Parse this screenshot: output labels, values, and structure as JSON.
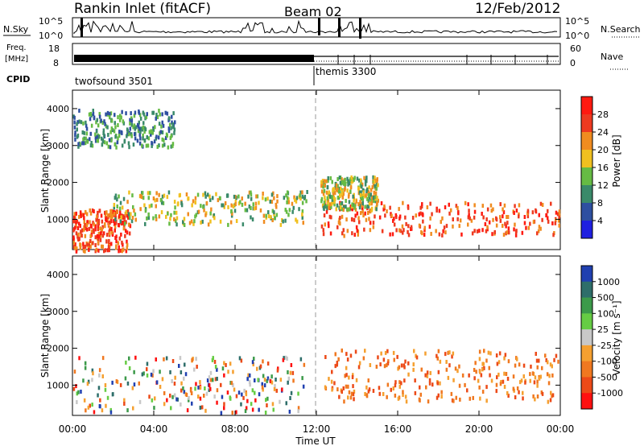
{
  "header": {
    "station": "Rankin Inlet (fitACF)",
    "beam": "Beam 02",
    "date": "12/Feb/2012"
  },
  "top_panels": {
    "nsky_label": "N.Sky",
    "nsky_ticks": [
      "10^5",
      "10^0"
    ],
    "nsearch_label": "N.Search",
    "nsearch_ticks": [
      "10^5",
      "10^0"
    ],
    "freq_label": "Freq.",
    "freq_unit": "[MHz]",
    "freq_ticks": [
      "18",
      "8"
    ],
    "nave_label": "Nave",
    "nave_ticks": [
      "60",
      "0"
    ],
    "cpid_label": "CPID",
    "cpid_segments": [
      {
        "label": "twofsound 3501",
        "start_hour": 0,
        "end_hour": 12
      },
      {
        "label": "themis 3300",
        "start_hour": 12,
        "end_hour": 24
      }
    ]
  },
  "chart_data": [
    {
      "type": "heatmap",
      "ylabel": "Slant Range [km]",
      "yticks": [
        1000,
        2000,
        3000,
        4000
      ],
      "ylim": [
        180,
        4500
      ],
      "xlim": [
        0,
        24
      ],
      "colorbar": {
        "label": "Power [dB]",
        "ticks": [
          "4",
          "8",
          "12",
          "16",
          "20",
          "24",
          "28"
        ],
        "colors": [
          "#1f1fe0",
          "#2e4fa0",
          "#3a8a6a",
          "#66bb44",
          "#f0c020",
          "#f08c20",
          "#ee3a20",
          "#ff1a10"
        ]
      },
      "scatter_regions": [
        {
          "start_hour": 0.0,
          "end_hour": 2.8,
          "range_km": [
            180,
            1300
          ],
          "level": "strong"
        },
        {
          "start_hour": 2.0,
          "end_hour": 11.5,
          "range_km": [
            900,
            1800
          ],
          "level": "medium"
        },
        {
          "start_hour": 12.2,
          "end_hour": 24.0,
          "range_km": [
            600,
            1500
          ],
          "level": "strong"
        },
        {
          "start_hour": 12.2,
          "end_hour": 15.0,
          "range_km": [
            1300,
            2200
          ],
          "level": "medium"
        },
        {
          "start_hour": 0.0,
          "end_hour": 5.0,
          "range_km": [
            3000,
            4000
          ],
          "level": "weak"
        }
      ]
    },
    {
      "type": "heatmap",
      "ylabel": "Slant Range [km]",
      "xlabel": "Time UT",
      "xticks": [
        "00:00",
        "04:00",
        "08:00",
        "12:00",
        "16:00",
        "20:00",
        "00:00"
      ],
      "yticks": [
        1000,
        2000,
        3000,
        4000
      ],
      "ylim": [
        180,
        4500
      ],
      "xlim": [
        0,
        24
      ],
      "colorbar": {
        "label": "Velocity [m s⁻¹]",
        "ticks": [
          "1000",
          "500",
          "100",
          "25",
          "-25",
          "-100",
          "-500",
          "-1000"
        ],
        "colors": [
          "#2040b0",
          "#2e6e6a",
          "#3c9a4a",
          "#66cc44",
          "#c8c8c8",
          "#f5a030",
          "#f07820",
          "#ec4a18",
          "#ff1010"
        ]
      },
      "scatter_regions": [
        {
          "start_hour": 0.0,
          "end_hour": 11.5,
          "range_km": [
            300,
            1800
          ],
          "level": "mixed"
        },
        {
          "start_hour": 12.2,
          "end_hour": 24.0,
          "range_km": [
            600,
            2000
          ],
          "level": "negative"
        }
      ]
    }
  ]
}
